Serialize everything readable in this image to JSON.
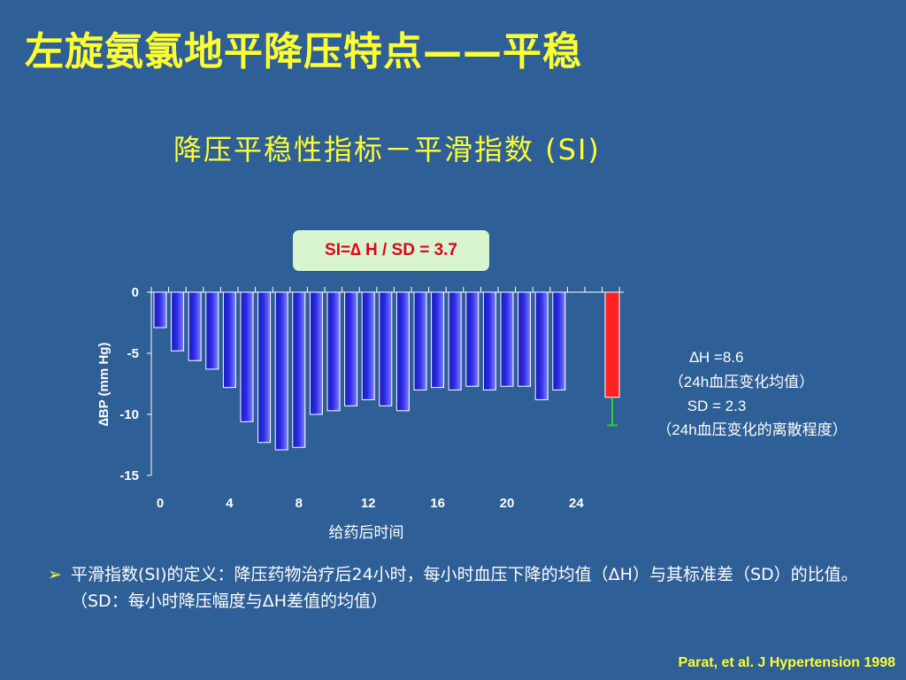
{
  "slide": {
    "title": "左旋氨氯地平降压特点——平稳",
    "subtitle": "降压平稳性指标－平滑指数 (SI)",
    "si_formula": "SI=∆ H / SD = 3.7",
    "note_arrow": "➢",
    "note": "平滑指数(SI)的定义：降压药物治疗后24小时，每小时血压下降的均值（ΔH）与其标准差（SD）的比值。（SD：每小时降压幅度与ΔH差值的均值）",
    "citation": "Parat, et al. J Hypertension 1998"
  },
  "annotations": {
    "delta_h": "∆H =8.6",
    "delta_h_desc": "（24h血压变化均值）",
    "sd": "SD = 2.3",
    "sd_desc": "（24h血压变化的离散程度）"
  },
  "chart_data": {
    "type": "bar",
    "xlabel": "给药后时间",
    "ylabel": "∆BP (mm Hg)",
    "ylim": [
      -15,
      0
    ],
    "yticks": [
      0,
      -5,
      -10,
      -15
    ],
    "xticks": [
      0,
      4,
      8,
      12,
      16,
      20,
      24
    ],
    "grid": false,
    "x": [
      0,
      1,
      2,
      3,
      4,
      5,
      6,
      7,
      8,
      9,
      10,
      11,
      12,
      13,
      14,
      15,
      16,
      17,
      18,
      19,
      20,
      21,
      22,
      23
    ],
    "values": [
      -2.9,
      -4.8,
      -5.6,
      -6.3,
      -7.8,
      -10.6,
      -12.3,
      -12.9,
      -12.7,
      -10.0,
      -9.7,
      -9.3,
      -8.8,
      -9.3,
      -9.7,
      -8.0,
      -7.8,
      -8.0,
      -7.7,
      -8.0,
      -7.7,
      -7.7,
      -8.8,
      -8.0
    ],
    "colors": {
      "bar": "#2b2be6",
      "summary_bar": "#ff2222",
      "error_bar": "#33cc33",
      "axis": "#ffffff"
    },
    "summary": {
      "value": -8.6,
      "sd": 2.3
    }
  }
}
